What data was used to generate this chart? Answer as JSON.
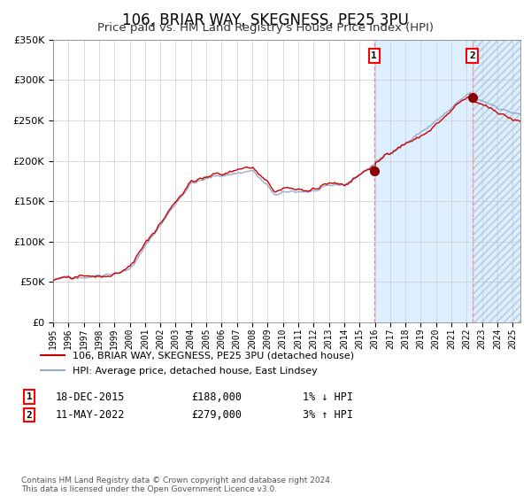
{
  "title": "106, BRIAR WAY, SKEGNESS, PE25 3PU",
  "subtitle": "Price paid vs. HM Land Registry's House Price Index (HPI)",
  "legend_line1": "106, BRIAR WAY, SKEGNESS, PE25 3PU (detached house)",
  "legend_line2": "HPI: Average price, detached house, East Lindsey",
  "annotation1_date": "18-DEC-2015",
  "annotation1_price": "£188,000",
  "annotation1_hpi": "1% ↓ HPI",
  "annotation2_date": "11-MAY-2022",
  "annotation2_price": "£279,000",
  "annotation2_hpi": "3% ↑ HPI",
  "footnote": "Contains HM Land Registry data © Crown copyright and database right 2024.\nThis data is licensed under the Open Government Licence v3.0.",
  "sale1_year": 2015.96,
  "sale1_value": 188000,
  "sale2_year": 2022.36,
  "sale2_value": 279000,
  "ylim_min": 0,
  "ylim_max": 350000,
  "xlim_min": 1995,
  "xlim_max": 2025.5,
  "line_color_red": "#cc0000",
  "line_color_blue": "#99aacc",
  "dot_color": "#880000",
  "shade_color": "#ddeeff",
  "grid_color": "#cccccc",
  "ytick_values": [
    0,
    50000,
    100000,
    150000,
    200000,
    250000,
    300000,
    350000
  ]
}
